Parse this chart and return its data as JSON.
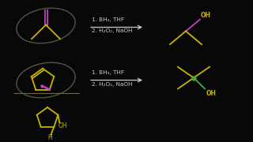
{
  "background_color": "#080808",
  "reaction_text_1a": "1. BH₃, THF",
  "reaction_text_1b": "2. H₂O₂, NaOH",
  "reaction_text_2a": "1. BH₃, THF",
  "reaction_text_2b": "2. H₂O₂, NaOH",
  "text_color": "#cccccc",
  "yellow": "#c8b400",
  "purple": "#bb44bb",
  "green": "#44aa44",
  "red": "#cc3333",
  "ellipse_color": "#555544",
  "lw": 1.3
}
